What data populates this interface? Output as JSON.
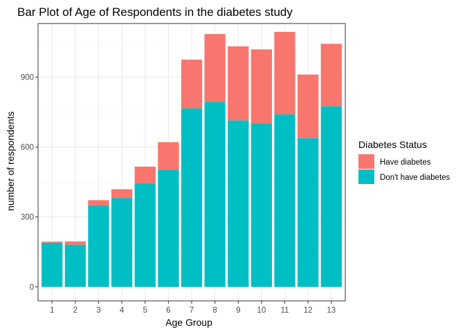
{
  "chart_data": {
    "type": "bar",
    "stacked": true,
    "title": "Bar Plot of Age of Respondents in the diabetes study",
    "xlabel": "Age Group",
    "ylabel": "number of respondents",
    "categories": [
      "1",
      "2",
      "3",
      "4",
      "5",
      "6",
      "7",
      "8",
      "9",
      "10",
      "11",
      "12",
      "13"
    ],
    "ylim": [
      -60,
      1130
    ],
    "yticks": [
      0,
      300,
      600,
      900
    ],
    "grid": true,
    "legend": {
      "title": "Diabetes Status",
      "placement": "right"
    },
    "series": [
      {
        "name": "Don't have diabetes",
        "color": "#00BFC4",
        "values": [
          189,
          181,
          350,
          381,
          443,
          502,
          766,
          794,
          714,
          701,
          740,
          638,
          775
        ]
      },
      {
        "name": "Have diabetes",
        "color": "#F8766D",
        "values": [
          5,
          14,
          22,
          38,
          73,
          119,
          209,
          291,
          318,
          318,
          354,
          273,
          268
        ]
      }
    ]
  }
}
